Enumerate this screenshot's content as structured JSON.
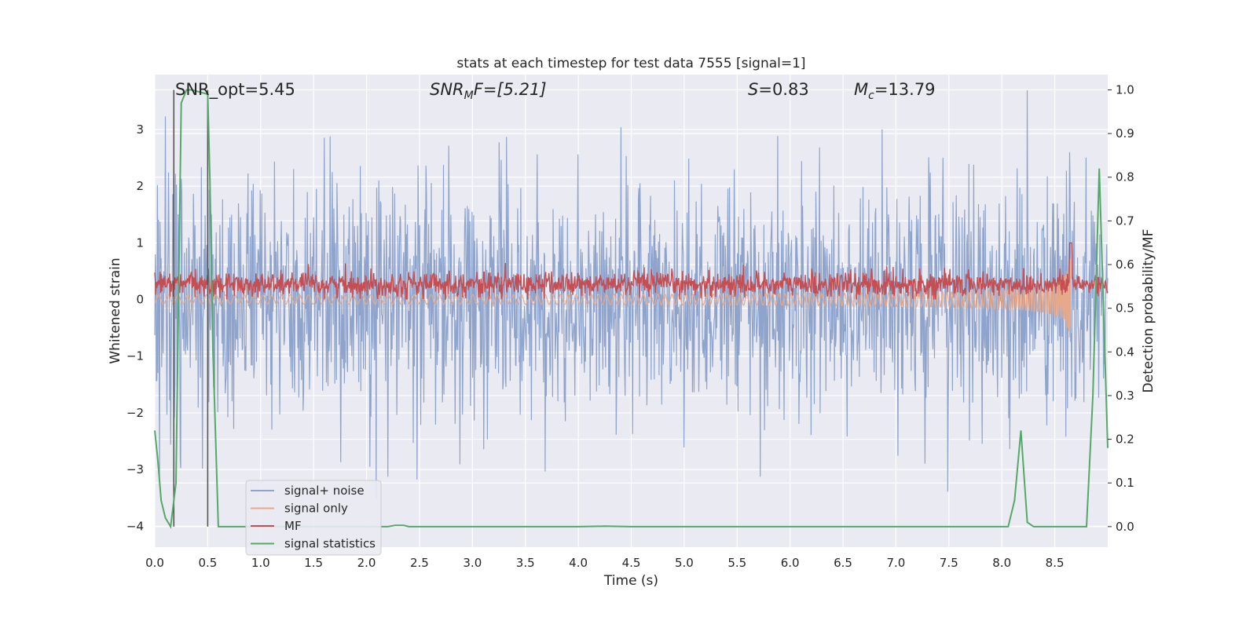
{
  "chart_data": {
    "type": "line",
    "title": "stats at each timestep for test data 7555 [signal=1]",
    "xlabel": "Time (s)",
    "ylabel_left": "Whitened strain",
    "ylabel_right": "Detection probability/MF",
    "xlim": [
      0.0,
      9.0
    ],
    "ylim_left": [
      -4.37,
      3.97
    ],
    "ylim_right": [
      -0.047,
      1.035
    ],
    "x_ticks": [
      "0.0",
      "0.5",
      "1.0",
      "1.5",
      "2.0",
      "2.5",
      "3.0",
      "3.5",
      "4.0",
      "4.5",
      "5.0",
      "5.5",
      "6.0",
      "6.5",
      "7.0",
      "7.5",
      "8.0",
      "8.5"
    ],
    "y_ticks_left": [
      "3",
      "2",
      "1",
      "0",
      "−1",
      "−2",
      "−3",
      "−4"
    ],
    "y_ticks_right": [
      "1.0",
      "0.9",
      "0.8",
      "0.7",
      "0.6",
      "0.5",
      "0.4",
      "0.3",
      "0.2",
      "0.1",
      "0.0"
    ],
    "grid": true,
    "legend_position": "lower-left",
    "annotations": {
      "snr_opt": "SNR_opt=5.45",
      "snr_mf_base": "SNR",
      "snr_mf_sub": "M",
      "snr_mf_rest": "F=[5.21]",
      "s_base": "S",
      "s_rest": "=0.83",
      "mc_base": "M",
      "mc_sub": "c",
      "mc_rest": "=13.79"
    },
    "vertical_markers_x": [
      0.18,
      0.5
    ],
    "series": [
      {
        "name": "signal+ noise",
        "axis": "left",
        "color": "#8fa4cc",
        "description_type": "noise",
        "std": 1.0,
        "duration": 9.0
      },
      {
        "name": "signal only",
        "axis": "left",
        "color": "#e8a88a",
        "chirp": {
          "t_start": 0.0,
          "t_merge": 8.65,
          "amp_start": 0.05,
          "amp_merge": 0.85
        }
      },
      {
        "name": "MF",
        "axis": "left",
        "color": "#c44e52",
        "mean": 0.27,
        "band": [
          0.0,
          0.55
        ],
        "peak": {
          "x": 8.65,
          "y": 1.0
        }
      },
      {
        "name": "signal statistics",
        "axis": "right",
        "color": "#55a868",
        "x": [
          0.0,
          0.03,
          0.06,
          0.1,
          0.15,
          0.18,
          0.2,
          0.25,
          0.3,
          0.35,
          0.5,
          0.52,
          0.55,
          0.6,
          0.62,
          0.65,
          1.0,
          1.5,
          2.0,
          2.2,
          2.27,
          2.35,
          2.4,
          3.0,
          3.5,
          4.0,
          4.25,
          4.5,
          5.0,
          6.0,
          7.0,
          7.5,
          8.0,
          8.06,
          8.12,
          8.18,
          8.24,
          8.3,
          8.4,
          8.5,
          8.7,
          8.8,
          8.86,
          8.92,
          9.0
        ],
        "y": [
          0.22,
          0.15,
          0.06,
          0.02,
          0.0,
          0.06,
          0.1,
          0.97,
          1.0,
          1.0,
          0.99,
          0.8,
          0.4,
          0.0,
          0.0,
          0.0,
          0.0,
          0.0,
          0.0,
          0.0,
          0.003,
          0.003,
          0.0,
          0.0,
          0.0,
          0.0,
          0.001,
          0.0,
          0.0,
          0.0,
          0.0,
          0.0,
          0.0,
          0.0,
          0.06,
          0.22,
          0.01,
          0.0,
          0.0,
          0.0,
          0.0,
          0.0,
          0.3,
          0.82,
          0.18
        ]
      }
    ]
  }
}
